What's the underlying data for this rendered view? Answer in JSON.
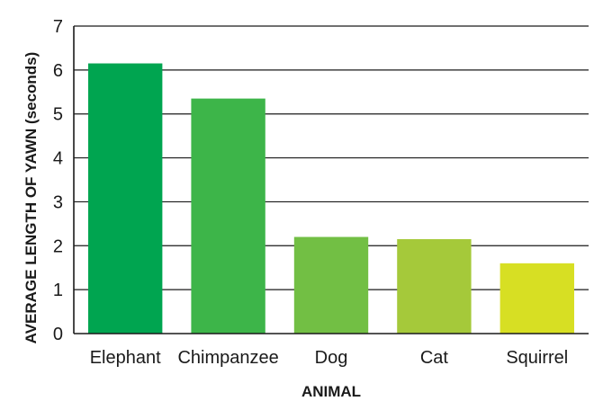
{
  "chart_data": {
    "type": "bar",
    "title": "",
    "xlabel": "ANIMAL",
    "ylabel": "AVERAGE LENGTH OF YAWN (seconds)",
    "categories": [
      "Elephant",
      "Chimpanzee",
      "Dog",
      "Cat",
      "Squirrel"
    ],
    "values": [
      6.15,
      5.35,
      2.2,
      2.15,
      1.6
    ],
    "colors": [
      "#00a550",
      "#3db549",
      "#72bf44",
      "#a5c93a",
      "#d7df23"
    ],
    "ylim": [
      0,
      7
    ],
    "yticks": [
      0,
      1,
      2,
      3,
      4,
      5,
      6,
      7
    ],
    "grid": true,
    "legend": "none"
  }
}
